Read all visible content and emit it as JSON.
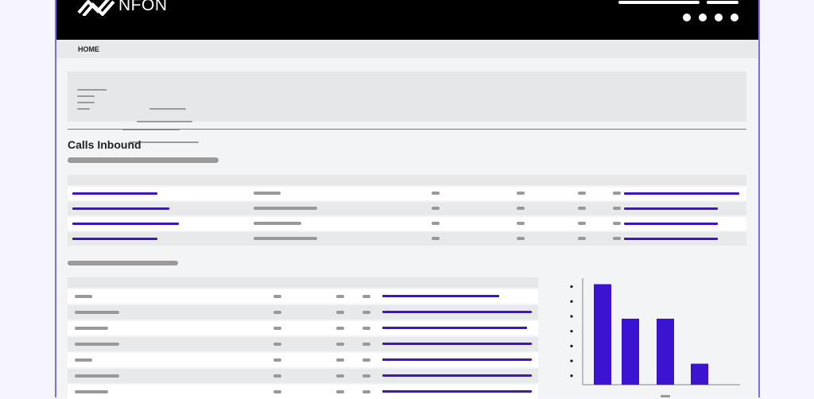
{
  "header": {
    "brand": "NFON",
    "menu_icon": "dots-menu-icon"
  },
  "nav": {
    "home": "HOME"
  },
  "section": {
    "title": "Calls Inbound"
  },
  "colors": {
    "accent": "#3a14d0",
    "header_bg": "#000000",
    "frame": "#7c6cf0"
  },
  "table1": {
    "rows": 4
  },
  "table2": {
    "rows": 7
  },
  "chart_data": {
    "type": "bar",
    "categories": [
      "",
      "",
      "",
      ""
    ],
    "values": [
      6.7,
      4.4,
      4.4,
      1.4
    ],
    "ylim": [
      0,
      7.1
    ],
    "grid": false,
    "color": "#3a14d0"
  }
}
